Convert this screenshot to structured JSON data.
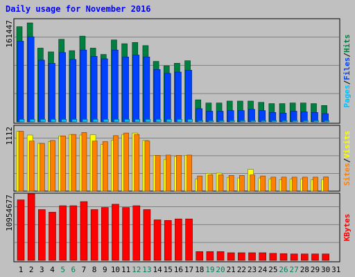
{
  "chart_data": {
    "type": "bar",
    "title": "Daily usage for November 2016",
    "categories": [
      "1",
      "2",
      "3",
      "4",
      "5",
      "6",
      "7",
      "8",
      "9",
      "10",
      "11",
      "12",
      "13",
      "14",
      "15",
      "16",
      "17",
      "18",
      "19",
      "20",
      "21",
      "22",
      "23",
      "24",
      "25",
      "26",
      "27",
      "28",
      "29",
      "30",
      "31"
    ],
    "weekend_days": [
      "5",
      "6",
      "12",
      "13",
      "19",
      "20",
      "26",
      "27"
    ],
    "panels": [
      {
        "id": "hits",
        "ymax_label": "161447",
        "ymax": 161447,
        "legend": [
          "Pages",
          "/",
          "Files",
          "/",
          "Hits"
        ],
        "series": [
          {
            "name": "Hits",
            "color": "#008040",
            "values": [
              151000,
              157000,
              117000,
              111000,
              131000,
              113000,
              136000,
              117000,
              107000,
              130000,
              124000,
              126000,
              121000,
              96000,
              89000,
              93000,
              97000,
              35000,
              30000,
              30000,
              33000,
              33000,
              33000,
              31000,
              29000,
              29000,
              30000,
              30000,
              29000,
              26000,
              null
            ]
          },
          {
            "name": "Files",
            "color": "#0040ff",
            "values": [
              128000,
              135000,
              98000,
              93000,
              110000,
              99000,
              114000,
              104000,
              100000,
              114000,
              103000,
              106000,
              103000,
              83000,
              77000,
              79000,
              82000,
              21000,
              17000,
              17000,
              18000,
              18000,
              20000,
              18000,
              15000,
              14000,
              17000,
              16000,
              15000,
              13000,
              null
            ]
          },
          {
            "name": "Pages",
            "color": "#00c0ff",
            "values": [
              4000,
              4000,
              4000,
              4000,
              4000,
              4000,
              4000,
              4000,
              4000,
              4000,
              4000,
              4000,
              4000,
              4000,
              4000,
              4000,
              4000,
              2000,
              2000,
              2000,
              2000,
              2000,
              2000,
              2000,
              2000,
              2000,
              2000,
              2000,
              2000,
              2000,
              null
            ]
          }
        ]
      },
      {
        "id": "visits",
        "ymax_label": "1112",
        "ymax": 1112,
        "legend": [
          "Sites",
          "/",
          "Visits"
        ],
        "series": [
          {
            "name": "Visits",
            "color": "#ffff00",
            "values": [
              1044,
              979,
              834,
              864,
              964,
              989,
              979,
              984,
              814,
              889,
              989,
              1014,
              884,
              624,
              554,
              604,
              624,
              209,
              309,
              314,
              239,
              229,
              379,
              229,
              214,
              199,
              209,
              209,
              199,
              204,
              null
            ]
          },
          {
            "name": "Sites",
            "color": "#ff8000",
            "values": [
              1044,
              874,
              834,
              884,
              964,
              989,
              1024,
              874,
              864,
              969,
              1014,
              989,
              874,
              624,
              629,
              624,
              629,
              264,
              284,
              284,
              274,
              274,
              284,
              264,
              244,
              244,
              244,
              244,
              244,
              249,
              null
            ]
          }
        ]
      },
      {
        "id": "kbytes",
        "ymax_label": "10954677",
        "ymax": 10954677,
        "legend": [
          "KBytes"
        ],
        "series": [
          {
            "name": "KBytes",
            "color": "#ff0000",
            "values": [
              10300000,
              11300000,
              8650000,
              8200000,
              9300000,
              9300000,
              10000000,
              8650000,
              9000000,
              9550000,
              9000000,
              9300000,
              8650000,
              6900000,
              6800000,
              7050000,
              7050000,
              1500000,
              1500000,
              1500000,
              1300000,
              1300000,
              1300000,
              1300000,
              1200000,
              1150000,
              1100000,
              1100000,
              1100000,
              1100000,
              null
            ]
          }
        ]
      }
    ]
  }
}
